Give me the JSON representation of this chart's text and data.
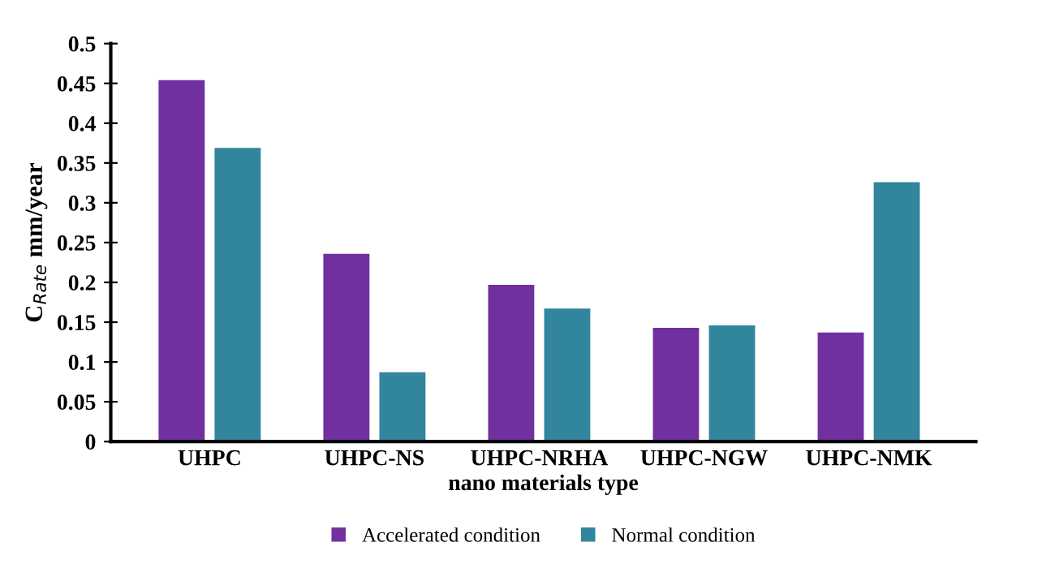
{
  "chart_data": {
    "type": "bar",
    "xlabel": "nano materials type",
    "ylabel": "C$_{Rate}$ mm/year",
    "categories": [
      "UHPC",
      "UHPC-NS",
      "UHPC-NRHA",
      "UHPC-NGW",
      "UHPC-NMK"
    ],
    "series": [
      {
        "name": "Accelerated condition",
        "color": "#7030a0",
        "values": [
          0.454,
          0.236,
          0.197,
          0.143,
          0.137
        ]
      },
      {
        "name": "Normal condition",
        "color": "#31859c",
        "values": [
          0.369,
          0.087,
          0.167,
          0.146,
          0.326
        ]
      }
    ],
    "ylim": [
      0,
      0.5
    ],
    "yticks": [
      {
        "value": 0,
        "label": "0"
      },
      {
        "value": 0.05,
        "label": "0.05"
      },
      {
        "value": 0.1,
        "label": "0.1"
      },
      {
        "value": 0.15,
        "label": "0.15"
      },
      {
        "value": 0.2,
        "label": "0.2"
      },
      {
        "value": 0.25,
        "label": "0.25"
      },
      {
        "value": 0.3,
        "label": "0.3"
      },
      {
        "value": 0.35,
        "label": "0.35"
      },
      {
        "value": 0.4,
        "label": "0.4"
      },
      {
        "value": 0.45,
        "label": "0.45"
      },
      {
        "value": 0.5,
        "label": "0.5"
      }
    ],
    "grid": false,
    "legend": "bottom"
  }
}
